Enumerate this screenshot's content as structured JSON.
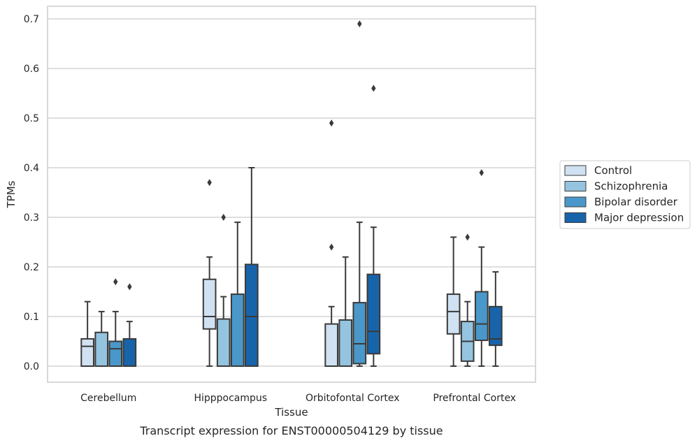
{
  "chart_data": {
    "type": "box",
    "xlabel": "Tissue",
    "ylabel": "TPMs",
    "caption": "Transcript expression for ENST00000504129 by tissue",
    "ylim": [
      -0.035,
      0.725
    ],
    "yticks": [
      0.0,
      0.1,
      0.2,
      0.3,
      0.4,
      0.5,
      0.6,
      0.7
    ],
    "ytick_labels": [
      "0.0",
      "0.1",
      "0.2",
      "0.3",
      "0.4",
      "0.5",
      "0.6",
      "0.7"
    ],
    "grid": "horizontal",
    "legend_position": "right",
    "categories": [
      "Cerebellum",
      "Hipppocampus",
      "Orbitofontal Cortex",
      "Prefrontal Cortex"
    ],
    "series": [
      {
        "name": "Control",
        "color": "#d0e1f2",
        "boxes": [
          {
            "whislo": 0.0,
            "q1": 0.0,
            "med": 0.04,
            "q3": 0.055,
            "whishi": 0.13,
            "fliers": []
          },
          {
            "whislo": 0.0,
            "q1": 0.075,
            "med": 0.1,
            "q3": 0.175,
            "whishi": 0.22,
            "fliers": [
              0.37
            ]
          },
          {
            "whislo": 0.0,
            "q1": 0.0,
            "med": 0.0,
            "q3": 0.085,
            "whishi": 0.12,
            "fliers": [
              0.24,
              0.49
            ]
          },
          {
            "whislo": 0.0,
            "q1": 0.065,
            "med": 0.11,
            "q3": 0.145,
            "whishi": 0.26,
            "fliers": []
          }
        ]
      },
      {
        "name": "Schizophrenia",
        "color": "#94c4df",
        "boxes": [
          {
            "whislo": 0.0,
            "q1": 0.0,
            "med": 0.0,
            "q3": 0.068,
            "whishi": 0.11,
            "fliers": []
          },
          {
            "whislo": 0.0,
            "q1": 0.0,
            "med": 0.0,
            "q3": 0.095,
            "whishi": 0.14,
            "fliers": [
              0.3
            ]
          },
          {
            "whislo": 0.0,
            "q1": 0.0,
            "med": 0.0,
            "q3": 0.093,
            "whishi": 0.22,
            "fliers": []
          },
          {
            "whislo": 0.0,
            "q1": 0.01,
            "med": 0.05,
            "q3": 0.09,
            "whishi": 0.13,
            "fliers": [
              0.26
            ]
          }
        ]
      },
      {
        "name": "Bipolar disorder",
        "color": "#4a98c9",
        "boxes": [
          {
            "whislo": 0.0,
            "q1": 0.0,
            "med": 0.035,
            "q3": 0.05,
            "whishi": 0.11,
            "fliers": [
              0.17
            ]
          },
          {
            "whislo": 0.0,
            "q1": 0.0,
            "med": 0.0,
            "q3": 0.145,
            "whishi": 0.29,
            "fliers": []
          },
          {
            "whislo": 0.0,
            "q1": 0.005,
            "med": 0.045,
            "q3": 0.128,
            "whishi": 0.29,
            "fliers": [
              0.69
            ]
          },
          {
            "whislo": 0.0,
            "q1": 0.052,
            "med": 0.085,
            "q3": 0.15,
            "whishi": 0.24,
            "fliers": [
              0.39
            ]
          }
        ]
      },
      {
        "name": "Major depression",
        "color": "#1764ab",
        "boxes": [
          {
            "whislo": 0.0,
            "q1": 0.0,
            "med": 0.0,
            "q3": 0.055,
            "whishi": 0.09,
            "fliers": [
              0.16
            ]
          },
          {
            "whislo": 0.0,
            "q1": 0.0,
            "med": 0.1,
            "q3": 0.205,
            "whishi": 0.4,
            "fliers": []
          },
          {
            "whislo": 0.0,
            "q1": 0.025,
            "med": 0.07,
            "q3": 0.185,
            "whishi": 0.28,
            "fliers": [
              0.56
            ]
          },
          {
            "whislo": 0.0,
            "q1": 0.042,
            "med": 0.055,
            "q3": 0.12,
            "whishi": 0.19,
            "fliers": []
          }
        ]
      }
    ]
  }
}
